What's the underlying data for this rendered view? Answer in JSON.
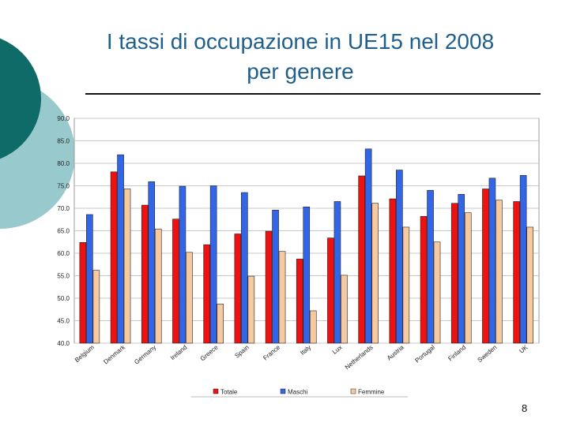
{
  "slide": {
    "title_line1": "I tassi di occupazione in UE15 nel 2008",
    "title_line2": "per genere",
    "page_number": "8"
  },
  "colors": {
    "title": "#1f5f8c",
    "circle_dark": "#0e6b67",
    "circle_light": "#98c9cc",
    "Totale": "#ee1111",
    "Maschi": "#3366e6",
    "Femmine": "#f7c9a0",
    "grid": "#c8c8c8"
  },
  "chart_data": {
    "type": "bar",
    "title": "",
    "xlabel": "",
    "ylabel": "",
    "ylim": [
      40,
      90
    ],
    "yticks": [
      "40.0",
      "45.0",
      "50.0",
      "55.0",
      "60.0",
      "65.0",
      "70.0",
      "75.0",
      "80.0",
      "85.0",
      "90.0"
    ],
    "grid": true,
    "legend_position": "bottom",
    "categories": [
      "Belgium",
      "Denmark",
      "Germany",
      "Ireland",
      "Greece",
      "Spain",
      "France",
      "Italy",
      "Lux",
      "Netherlands",
      "Austria",
      "Portugal",
      "Finland",
      "Sweden",
      "UK"
    ],
    "series": [
      {
        "name": "Totale",
        "values": [
          62.4,
          78.1,
          70.7,
          67.6,
          61.9,
          64.3,
          64.9,
          58.7,
          63.4,
          77.2,
          72.1,
          68.2,
          71.1,
          74.3,
          71.5
        ]
      },
      {
        "name": "Maschi",
        "values": [
          68.6,
          81.9,
          75.9,
          74.9,
          75.0,
          73.5,
          69.6,
          70.3,
          71.5,
          83.2,
          78.5,
          74.0,
          73.1,
          76.7,
          77.3
        ]
      },
      {
        "name": "Femmine",
        "values": [
          56.2,
          74.3,
          65.4,
          60.2,
          48.7,
          54.9,
          60.4,
          47.2,
          55.1,
          71.1,
          65.8,
          62.5,
          69.0,
          71.8,
          65.8
        ]
      }
    ]
  }
}
